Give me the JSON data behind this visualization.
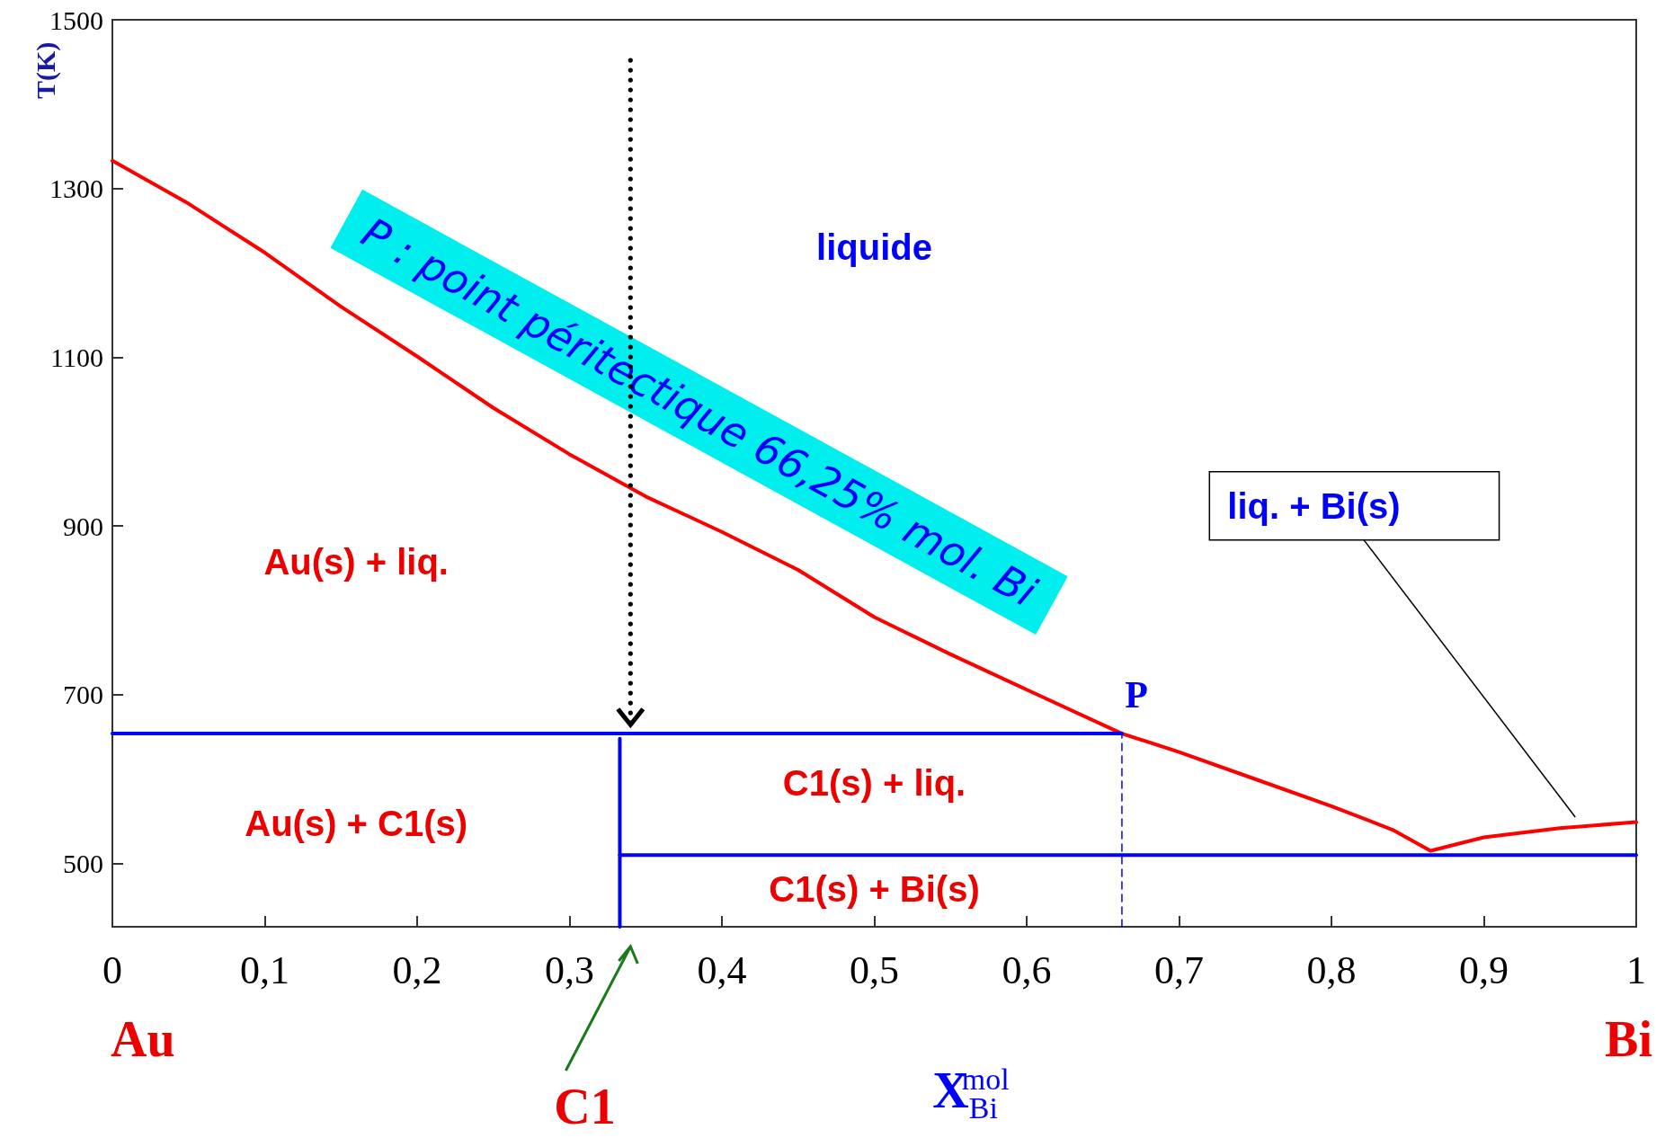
{
  "chart_data": {
    "type": "line",
    "xlabel": "X$_{Bi}$$^{mol}$",
    "ylabel": "T(K)",
    "xlim": [
      0,
      1
    ],
    "ylim": [
      425,
      1500
    ],
    "xticks": [
      0,
      {
        "value": 0.1,
        "label": "0,1"
      },
      {
        "value": 0.2,
        "label": "0,2"
      },
      {
        "value": 0.3,
        "label": "0,3"
      },
      {
        "value": 0.4,
        "label": "0,4"
      },
      {
        "value": 0.5,
        "label": "0,5"
      },
      {
        "value": 0.6,
        "label": "0,6"
      },
      {
        "value": 0.7,
        "label": "0,7"
      },
      {
        "value": 0.8,
        "label": "0,8"
      },
      {
        "value": 0.9,
        "label": "0,9"
      },
      1
    ],
    "yticks": [
      500,
      700,
      900,
      1100,
      1300,
      1500
    ],
    "grid": false,
    "marker": "none",
    "series": [
      {
        "color": "#ff0000",
        "line_style": "solid",
        "x": [
          0,
          0.05,
          0.1,
          0.15,
          0.2,
          0.25,
          0.3,
          0.35,
          0.4,
          0.45,
          0.5,
          0.55,
          0.6,
          0.6625,
          0.7,
          0.75,
          0.8,
          0.84,
          0.865,
          0.9,
          0.95,
          1
        ],
        "values": [
          1333,
          1282,
          1224,
          1160,
          1101,
          1040,
          985,
          935,
          893,
          848,
          792,
          748,
          706,
          654,
          632,
          600,
          568,
          540,
          515,
          531,
          542,
          549
        ]
      },
      {
        "color": "#0000ff",
        "line_style": "solid",
        "x": [
          0,
          0.6625
        ],
        "values": [
          654,
          654
        ]
      },
      {
        "color": "#0000ff",
        "line_style": "solid",
        "x": [
          0.333,
          1
        ],
        "values": [
          510,
          510
        ]
      },
      {
        "color": "#0000ff",
        "line_style": "solid",
        "x": [
          0.333,
          0.333
        ],
        "values": [
          425,
          648
        ]
      },
      {
        "color": "#0000ff",
        "line_style": "dashed",
        "x": [
          0.6625,
          0.6625
        ],
        "values": [
          425,
          654
        ]
      }
    ],
    "annotations": [
      "liquide",
      "Au(s) + liq.",
      "Au(s) + C1(s)",
      "C1(s) + liq.",
      "C1(s) + Bi(s)",
      "liq. + Bi(s)",
      "P",
      "P : point péritectique 66,25% mol. Bi",
      "Au",
      "Bi",
      "C1"
    ]
  }
}
